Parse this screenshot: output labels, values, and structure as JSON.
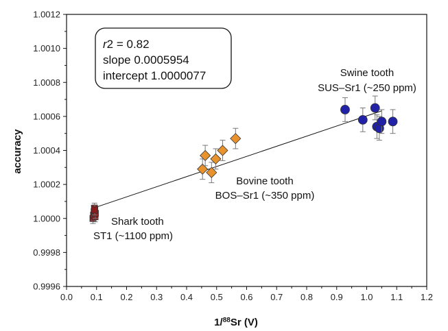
{
  "chart_data": {
    "type": "scatter",
    "title": "",
    "xlabel": {
      "prefix": "1/",
      "superscript": "88",
      "suffix": "Sr (V)"
    },
    "ylabel": "accuracy",
    "xlim": [
      0.0,
      1.2
    ],
    "ylim": [
      0.9996,
      1.0012
    ],
    "x_ticks": [
      "0.0",
      "0.1",
      "0.2",
      "0.3",
      "0.4",
      "0.5",
      "0.6",
      "0.7",
      "0.8",
      "0.9",
      "1.0",
      "1.1",
      "1.2"
    ],
    "y_ticks": [
      "0.9996",
      "0.9998",
      "1.0000",
      "1.0002",
      "1.0004",
      "1.0006",
      "1.0008",
      "1.0010",
      "1.0012"
    ],
    "grid": false,
    "colors": {
      "shark": "#8b1a1a",
      "bovine": "#e8922e",
      "swine": "#2222a8",
      "edge": "#333333",
      "fit": "#111111",
      "errorbar": "#777777"
    },
    "series": [
      {
        "marker": "square",
        "points": [
          {
            "x": 0.088,
            "y": 1.0,
            "err": 3e-05
          },
          {
            "x": 0.09,
            "y": 1.00002,
            "err": 3e-05
          },
          {
            "x": 0.092,
            "y": 1.00004,
            "err": 3e-05
          },
          {
            "x": 0.093,
            "y": 1.00006,
            "err": 3e-05
          },
          {
            "x": 0.095,
            "y": 1.00001,
            "err": 3e-05
          },
          {
            "x": 0.096,
            "y": 1.00003,
            "err": 3e-05
          },
          {
            "x": 0.094,
            "y": 1.00005,
            "err": 3e-05
          }
        ]
      },
      {
        "marker": "diamond",
        "points": [
          {
            "x": 0.453,
            "y": 1.00029,
            "err": 6e-05
          },
          {
            "x": 0.462,
            "y": 1.00037,
            "err": 6e-05
          },
          {
            "x": 0.483,
            "y": 1.00027,
            "err": 6e-05
          },
          {
            "x": 0.497,
            "y": 1.00035,
            "err": 6e-05
          },
          {
            "x": 0.52,
            "y": 1.0004,
            "err": 6e-05
          },
          {
            "x": 0.563,
            "y": 1.00047,
            "err": 6e-05
          }
        ]
      },
      {
        "marker": "circle",
        "points": [
          {
            "x": 0.928,
            "y": 1.00064,
            "err": 7e-05
          },
          {
            "x": 0.987,
            "y": 1.00058,
            "err": 7e-05
          },
          {
            "x": 1.028,
            "y": 1.00065,
            "err": 7e-05
          },
          {
            "x": 1.034,
            "y": 1.00054,
            "err": 7e-05
          },
          {
            "x": 1.042,
            "y": 1.00053,
            "err": 7e-05
          },
          {
            "x": 1.05,
            "y": 1.00057,
            "err": 7e-05
          },
          {
            "x": 1.087,
            "y": 1.00057,
            "err": 7e-05
          }
        ]
      }
    ],
    "fit": {
      "slope": 0.0005954,
      "intercept": 1.0000077,
      "x_range": [
        0.09,
        1.05
      ]
    },
    "stats_box": {
      "r2_symbol": "r",
      "r2_text": "2 = 0.82",
      "slope_text": "slope 0.0005954",
      "intercept_text": "intercept 1.0000077"
    },
    "annotations": [
      {
        "id": "shark",
        "lines": [
          "Shark tooth",
          "ST1 (~1100 ppm)"
        ],
        "anchor": "start"
      },
      {
        "id": "bovine",
        "lines": [
          "Bovine tooth",
          "BOS–Sr1 (~350 ppm)"
        ],
        "anchor": "middle"
      },
      {
        "id": "swine",
        "lines": [
          "Swine tooth",
          "SUS–Sr1 (~250 ppm)"
        ],
        "anchor": "middle"
      }
    ]
  }
}
